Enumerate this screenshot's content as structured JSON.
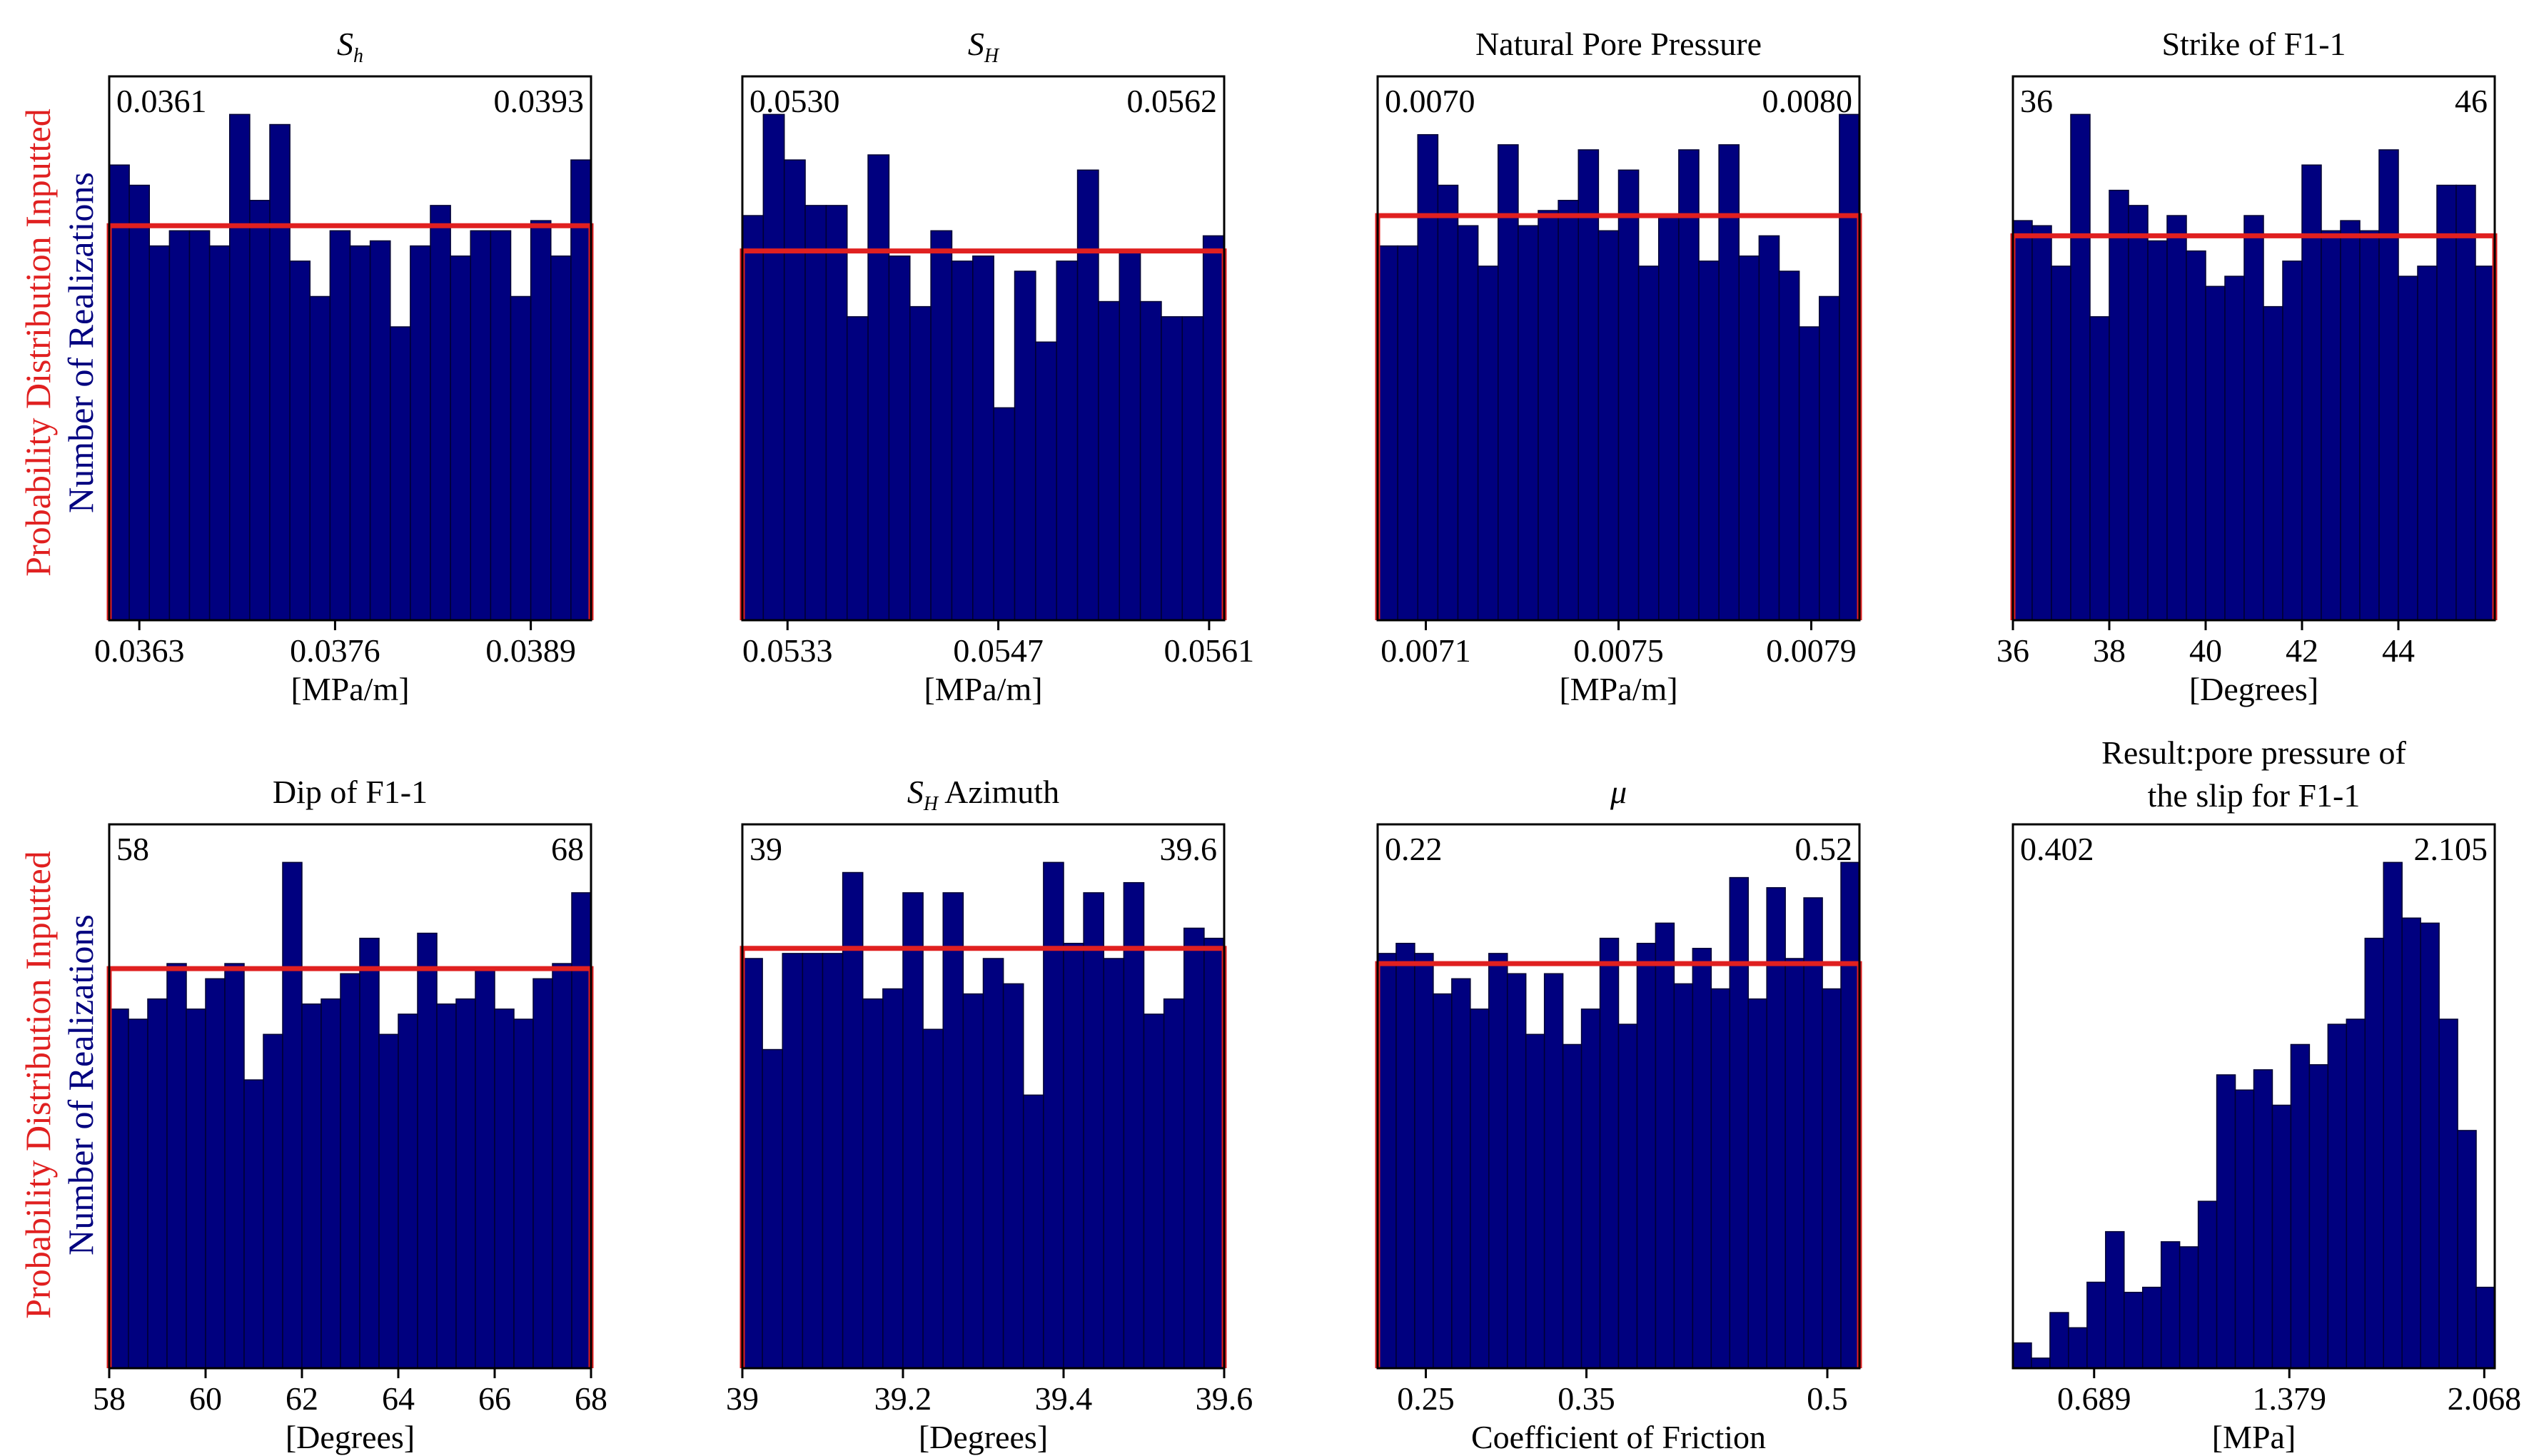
{
  "y_labels": {
    "probability": "Probability Distribution Inputted",
    "realizations": "Number of Realizations"
  },
  "colors": {
    "bar_fill": "#00007f",
    "bar_edge": "#000033",
    "uniform_line": "#e02020",
    "axis": "#000000"
  },
  "chart_data": [
    {
      "type": "bar",
      "title": "S",
      "title_subscript": "h",
      "xlabel": "[MPa/m]",
      "range_min_label": "0.0361",
      "range_max_label": "0.0393",
      "xlim": [
        0.0361,
        0.0393
      ],
      "xticks": [
        0.0363,
        0.0376,
        0.0389
      ],
      "xtick_labels": [
        "0.0363",
        "0.0376",
        "0.0389"
      ],
      "ylim": [
        0,
        100
      ],
      "uniform_level": 78,
      "values": [
        90,
        86,
        74,
        77,
        77,
        74,
        100,
        83,
        98,
        71,
        64,
        77,
        74,
        75,
        58,
        74,
        82,
        72,
        77,
        77,
        64,
        79,
        72,
        91
      ]
    },
    {
      "type": "bar",
      "title": "S",
      "title_subscript": "H",
      "xlabel": "[MPa/m]",
      "range_min_label": "0.0530",
      "range_max_label": "0.0562",
      "xlim": [
        0.053,
        0.0562
      ],
      "xticks": [
        0.0533,
        0.0547,
        0.0561
      ],
      "xtick_labels": [
        "0.0533",
        "0.0547",
        "0.0561"
      ],
      "ylim": [
        0,
        100
      ],
      "uniform_level": 73,
      "values": [
        80,
        100,
        91,
        82,
        82,
        60,
        92,
        72,
        62,
        77,
        71,
        72,
        42,
        69,
        55,
        71,
        89,
        63,
        73,
        63,
        60,
        60,
        76
      ]
    },
    {
      "type": "bar",
      "title": "Natural Pore Pressure",
      "title_subscript": "",
      "xlabel": "[MPa/m]",
      "range_min_label": "0.0070",
      "range_max_label": "0.0080",
      "xlim": [
        0.007,
        0.008
      ],
      "xticks": [
        0.0071,
        0.0075,
        0.0079
      ],
      "xtick_labels": [
        "0.0071",
        "0.0075",
        "0.0079"
      ],
      "ylim": [
        0,
        100
      ],
      "uniform_level": 80,
      "values": [
        74,
        74,
        96,
        86,
        78,
        70,
        94,
        78,
        81,
        83,
        93,
        77,
        89,
        70,
        80,
        93,
        71,
        94,
        72,
        76,
        69,
        58,
        64,
        100
      ]
    },
    {
      "type": "bar",
      "title": "Strike of F1-1",
      "title_subscript": "",
      "xlabel": "[Degrees]",
      "range_min_label": "36",
      "range_max_label": "46",
      "xlim": [
        36,
        46
      ],
      "xticks": [
        36,
        38,
        40,
        42,
        44
      ],
      "xtick_labels": [
        "36",
        "38",
        "40",
        "42",
        "44"
      ],
      "ylim": [
        0,
        100
      ],
      "uniform_level": 76,
      "values": [
        79,
        78,
        70,
        100,
        60,
        85,
        82,
        75,
        80,
        73,
        66,
        68,
        80,
        62,
        71,
        90,
        77,
        79,
        77,
        93,
        68,
        70,
        86,
        86,
        70
      ]
    },
    {
      "type": "bar",
      "title": "Dip of F1-1",
      "title_subscript": "",
      "xlabel": "[Degrees]",
      "range_min_label": "58",
      "range_max_label": "68",
      "xlim": [
        58,
        68
      ],
      "xticks": [
        58,
        60,
        62,
        64,
        66,
        68
      ],
      "xtick_labels": [
        "58",
        "60",
        "62",
        "64",
        "66",
        "68"
      ],
      "ylim": [
        0,
        100
      ],
      "uniform_level": 79,
      "values": [
        71,
        69,
        73,
        80,
        71,
        77,
        80,
        57,
        66,
        100,
        72,
        73,
        78,
        85,
        66,
        70,
        86,
        72,
        73,
        79,
        71,
        69,
        77,
        80,
        94
      ]
    },
    {
      "type": "bar",
      "title": " Azimuth",
      "title_subscript": "H",
      "title_prefix": "S",
      "xlabel": "[Degrees]",
      "range_min_label": "39",
      "range_max_label": "39.6",
      "xlim": [
        39,
        39.6
      ],
      "xticks": [
        39,
        39.2,
        39.4,
        39.6
      ],
      "xtick_labels": [
        "39",
        "39.2",
        "39.4",
        "39.6"
      ],
      "ylim": [
        0,
        100
      ],
      "uniform_level": 83,
      "values": [
        81,
        63,
        82,
        82,
        82,
        98,
        73,
        75,
        94,
        67,
        94,
        74,
        81,
        76,
        54,
        100,
        84,
        94,
        81,
        96,
        70,
        73,
        87,
        85
      ]
    },
    {
      "type": "bar",
      "title": "μ",
      "title_subscript": "",
      "xlabel": "Coefficient of Friction",
      "range_min_label": "0.22",
      "range_max_label": "0.52",
      "xlim": [
        0.22,
        0.52
      ],
      "xticks": [
        0.25,
        0.35,
        0.5
      ],
      "xtick_labels": [
        "0.25",
        "0.35",
        "0.5"
      ],
      "ylim": [
        0,
        100
      ],
      "uniform_level": 80,
      "values": [
        82,
        84,
        82,
        74,
        77,
        71,
        82,
        78,
        66,
        78,
        64,
        71,
        85,
        68,
        84,
        88,
        76,
        83,
        75,
        97,
        73,
        95,
        81,
        93,
        75,
        100
      ]
    },
    {
      "type": "bar",
      "title": "Result:pore pressure of",
      "title_line2": "the slip for F1-1",
      "title_subscript": "",
      "xlabel": "[MPa]",
      "range_min_label": "0.402",
      "range_max_label": "2.105",
      "xlim": [
        0.402,
        2.105
      ],
      "xticks": [
        0.689,
        1.379,
        2.068
      ],
      "xtick_labels": [
        "0.689",
        "1.379",
        "2.068"
      ],
      "ylim": [
        0,
        100
      ],
      "uniform_level": null,
      "values": [
        5,
        2,
        11,
        8,
        17,
        27,
        15,
        16,
        25,
        24,
        33,
        58,
        55,
        59,
        52,
        64,
        60,
        68,
        69,
        85,
        100,
        89,
        88,
        69,
        47,
        16
      ]
    }
  ]
}
